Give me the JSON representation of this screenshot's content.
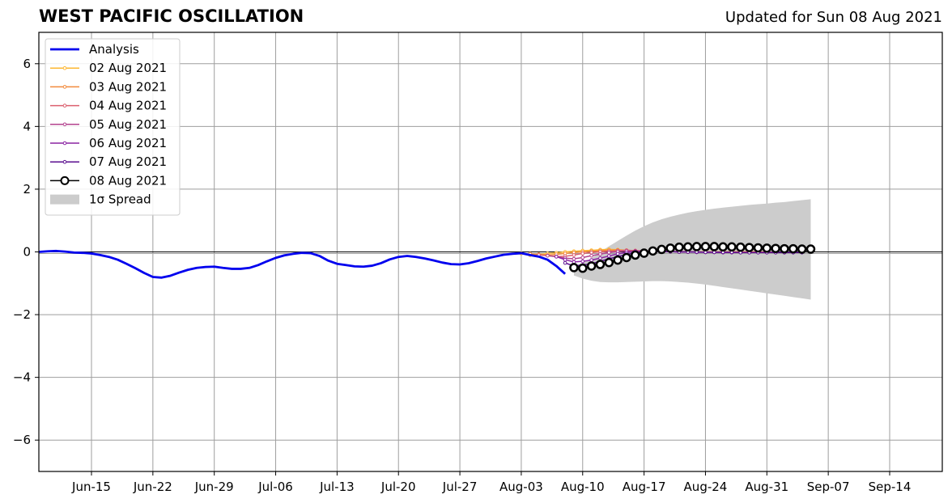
{
  "header": {
    "title": "WEST PACIFIC OSCILLATION",
    "updated": "Updated for Sun 08 Aug 2021"
  },
  "colors": {
    "analysis": "#0000ee",
    "spread": "#cccccc",
    "grid": "#9e9e9e",
    "forecasts": [
      "#fdb732",
      "#f28a3c",
      "#db5f6e",
      "#b3428e",
      "#8a23a2",
      "#5a0e8f",
      "#000000"
    ]
  },
  "chart_data": {
    "type": "line",
    "title": "WEST PACIFIC OSCILLATION",
    "xlabel": "",
    "ylabel": "",
    "x_ticks": [
      "Jun-15",
      "Jun-22",
      "Jun-29",
      "Jul-06",
      "Jul-13",
      "Jul-20",
      "Jul-27",
      "Aug-03",
      "Aug-10",
      "Aug-17",
      "Aug-24",
      "Aug-31",
      "Sep-07",
      "Sep-14"
    ],
    "y_ticks": [
      "6",
      "4",
      "2",
      "0",
      "−2",
      "−4",
      "−6"
    ],
    "xlim": [
      "2021-06-09",
      "2021-09-20"
    ],
    "ylim": [
      -7,
      7
    ],
    "grid": true,
    "legend_position": "top-left",
    "analysis": {
      "name": "Analysis",
      "dates": [
        "2021-06-09",
        "2021-06-10",
        "2021-06-11",
        "2021-06-12",
        "2021-06-13",
        "2021-06-14",
        "2021-06-15",
        "2021-06-16",
        "2021-06-17",
        "2021-06-18",
        "2021-06-19",
        "2021-06-20",
        "2021-06-21",
        "2021-06-22",
        "2021-06-23",
        "2021-06-24",
        "2021-06-25",
        "2021-06-26",
        "2021-06-27",
        "2021-06-28",
        "2021-06-29",
        "2021-06-30",
        "2021-07-01",
        "2021-07-02",
        "2021-07-03",
        "2021-07-04",
        "2021-07-05",
        "2021-07-06",
        "2021-07-07",
        "2021-07-08",
        "2021-07-09",
        "2021-07-10",
        "2021-07-11",
        "2021-07-12",
        "2021-07-13",
        "2021-07-14",
        "2021-07-15",
        "2021-07-16",
        "2021-07-17",
        "2021-07-18",
        "2021-07-19",
        "2021-07-20",
        "2021-07-21",
        "2021-07-22",
        "2021-07-23",
        "2021-07-24",
        "2021-07-25",
        "2021-07-26",
        "2021-07-27",
        "2021-07-28",
        "2021-07-29",
        "2021-07-30",
        "2021-07-31",
        "2021-08-01",
        "2021-08-02",
        "2021-08-03",
        "2021-08-04",
        "2021-08-05",
        "2021-08-06",
        "2021-08-07",
        "2021-08-08"
      ],
      "values": [
        0.0,
        0.02,
        0.03,
        0.01,
        -0.02,
        -0.03,
        -0.05,
        -0.1,
        -0.16,
        -0.25,
        -0.38,
        -0.52,
        -0.67,
        -0.8,
        -0.82,
        -0.76,
        -0.66,
        -0.57,
        -0.51,
        -0.48,
        -0.47,
        -0.51,
        -0.54,
        -0.54,
        -0.51,
        -0.42,
        -0.3,
        -0.19,
        -0.11,
        -0.06,
        -0.03,
        -0.04,
        -0.13,
        -0.28,
        -0.38,
        -0.42,
        -0.46,
        -0.47,
        -0.44,
        -0.36,
        -0.24,
        -0.16,
        -0.13,
        -0.16,
        -0.21,
        -0.27,
        -0.34,
        -0.39,
        -0.4,
        -0.36,
        -0.29,
        -0.21,
        -0.15,
        -0.09,
        -0.06,
        -0.04,
        -0.1,
        -0.15,
        -0.25,
        -0.45,
        -0.7
      ]
    },
    "forecasts": [
      {
        "name": "02 Aug 2021",
        "start": "2021-08-03",
        "values": [
          -0.05,
          -0.1,
          -0.08,
          -0.05,
          -0.03,
          0.0,
          0.02,
          0.04,
          0.05,
          0.07,
          0.08,
          0.07,
          0.05,
          0.04,
          0.03,
          0.02,
          0.02,
          0.01,
          0.01,
          0.01,
          0.0,
          0.0,
          0.0,
          0.0,
          0.0,
          0.0,
          0.0,
          0.0
        ]
      },
      {
        "name": "03 Aug 2021",
        "start": "2021-08-04",
        "values": [
          -0.06,
          -0.08,
          -0.1,
          -0.08,
          -0.05,
          -0.02,
          0.0,
          0.02,
          0.04,
          0.05,
          0.06,
          0.05,
          0.04,
          0.03,
          0.02,
          0.02,
          0.01,
          0.01,
          0.0,
          0.0,
          0.0,
          0.0,
          0.0,
          0.0,
          0.0,
          0.0,
          0.0,
          0.0
        ]
      },
      {
        "name": "04 Aug 2021",
        "start": "2021-08-05",
        "values": [
          -0.1,
          -0.12,
          -0.15,
          -0.14,
          -0.1,
          -0.05,
          -0.02,
          0.0,
          0.02,
          0.04,
          0.05,
          0.04,
          0.03,
          0.02,
          0.02,
          0.01,
          0.0,
          0.0,
          0.0,
          -0.01,
          -0.01,
          -0.01,
          -0.01,
          -0.01,
          -0.01,
          -0.01,
          -0.01,
          -0.01
        ]
      },
      {
        "name": "05 Aug 2021",
        "start": "2021-08-06",
        "values": [
          -0.12,
          -0.15,
          -0.2,
          -0.22,
          -0.18,
          -0.12,
          -0.07,
          -0.02,
          0.01,
          0.03,
          0.03,
          0.03,
          0.02,
          0.01,
          0.01,
          0.0,
          0.0,
          -0.01,
          -0.01,
          -0.01,
          -0.02,
          -0.02,
          -0.02,
          -0.02,
          -0.02,
          -0.02,
          -0.02,
          -0.02
        ]
      },
      {
        "name": "06 Aug 2021",
        "start": "2021-08-07",
        "values": [
          -0.15,
          -0.25,
          -0.32,
          -0.3,
          -0.26,
          -0.2,
          -0.13,
          -0.06,
          -0.02,
          0.01,
          0.02,
          0.02,
          0.01,
          0.01,
          0.0,
          0.0,
          -0.01,
          -0.01,
          -0.01,
          -0.02,
          -0.02,
          -0.02,
          -0.02,
          -0.02,
          -0.02,
          -0.02,
          -0.02,
          -0.02
        ]
      },
      {
        "name": "07 Aug 2021",
        "start": "2021-08-08",
        "values": [
          -0.35,
          -0.45,
          -0.42,
          -0.38,
          -0.3,
          -0.22,
          -0.15,
          -0.08,
          -0.03,
          0.0,
          0.01,
          0.01,
          0.01,
          0.0,
          0.0,
          0.0,
          -0.01,
          -0.01,
          -0.01,
          -0.01,
          -0.02,
          -0.02,
          -0.02,
          -0.02,
          -0.02,
          -0.02,
          -0.02,
          -0.02
        ]
      },
      {
        "name": "08 Aug 2021",
        "start": "2021-08-09",
        "values": [
          -0.5,
          -0.52,
          -0.45,
          -0.4,
          -0.34,
          -0.26,
          -0.18,
          -0.1,
          -0.04,
          0.03,
          0.08,
          0.12,
          0.15,
          0.16,
          0.17,
          0.17,
          0.17,
          0.16,
          0.16,
          0.15,
          0.14,
          0.13,
          0.12,
          0.11,
          0.1,
          0.1,
          0.09,
          0.09
        ]
      }
    ],
    "spread": {
      "name": "1σ Spread",
      "start": "2021-08-09",
      "upper": [
        -0.45,
        -0.35,
        -0.2,
        0.0,
        0.18,
        0.35,
        0.52,
        0.68,
        0.82,
        0.94,
        1.04,
        1.12,
        1.19,
        1.25,
        1.3,
        1.34,
        1.38,
        1.41,
        1.44,
        1.47,
        1.5,
        1.52,
        1.54,
        1.57,
        1.59,
        1.62,
        1.65,
        1.68
      ],
      "lower": [
        -0.75,
        -0.85,
        -0.92,
        -0.96,
        -0.97,
        -0.97,
        -0.96,
        -0.95,
        -0.94,
        -0.93,
        -0.93,
        -0.94,
        -0.96,
        -0.98,
        -1.01,
        -1.04,
        -1.08,
        -1.12,
        -1.16,
        -1.2,
        -1.24,
        -1.28,
        -1.32,
        -1.36,
        -1.4,
        -1.44,
        -1.48,
        -1.52
      ]
    }
  }
}
